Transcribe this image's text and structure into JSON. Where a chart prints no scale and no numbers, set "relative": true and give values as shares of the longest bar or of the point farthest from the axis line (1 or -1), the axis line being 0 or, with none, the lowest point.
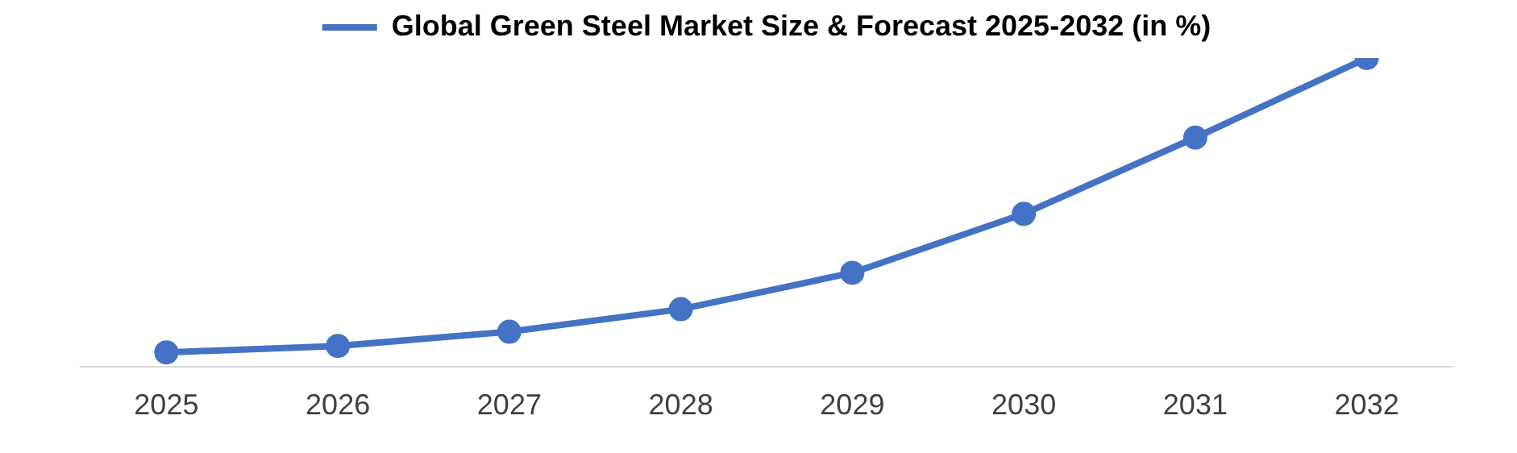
{
  "chart_data": {
    "type": "line",
    "relative": true,
    "categories": [
      "2025",
      "2026",
      "2027",
      "2028",
      "2029",
      "2030",
      "2031",
      "2032"
    ],
    "series": [
      {
        "name": "Global Green Steel Market Size & Forecast 2025-2032 (in %)",
        "color": "#4472c4",
        "values": [
          0.046,
          0.067,
          0.113,
          0.186,
          0.304,
          0.495,
          0.742,
          1
        ]
      }
    ],
    "legend": "top",
    "marker": "circle"
  }
}
